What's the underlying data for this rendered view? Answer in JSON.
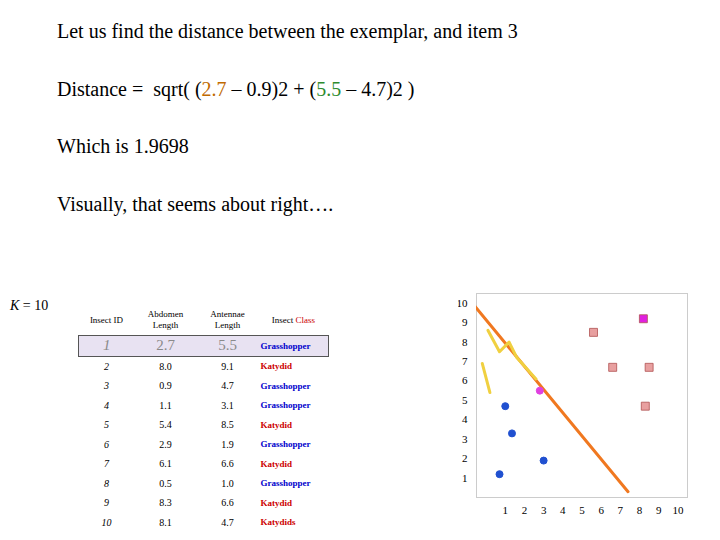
{
  "slide": {
    "title": "Let us find the distance between the exemplar, and item 3",
    "formula": [
      {
        "text": "Distance =  sqrt( ("
      },
      {
        "text": "2.7",
        "color": "#c06a00"
      },
      {
        "text": " – 0.9)2 + ("
      },
      {
        "text": "5.5",
        "color": "#2e8b2e"
      },
      {
        "text": " – 4.7)2 )"
      }
    ],
    "result": "Which is 1.9698",
    "comment": "Visually, that seems about right…."
  },
  "k_label": "K = 10",
  "table": {
    "header": [
      [
        {
          "text": "Insect ID"
        }
      ],
      [
        {
          "text": "Abdomen Length"
        }
      ],
      [
        {
          "text": "Antennae Length"
        }
      ],
      [
        {
          "text": "Insect "
        },
        {
          "text": "Class",
          "color": "#cc0000"
        }
      ]
    ],
    "rows": [
      [
        "1",
        "2.7",
        "5.5",
        "Grasshopper"
      ],
      [
        "2",
        "8.0",
        "9.1",
        "Katydid"
      ],
      [
        "3",
        "0.9",
        "4.7",
        "Grasshopper"
      ],
      [
        "4",
        "1.1",
        "3.1",
        "Grasshopper"
      ],
      [
        "5",
        "5.4",
        "8.5",
        "Katydid"
      ],
      [
        "6",
        "2.9",
        "1.9",
        "Grasshopper"
      ],
      [
        "7",
        "6.1",
        "6.6",
        "Katydid"
      ],
      [
        "8",
        "0.5",
        "1.0",
        "Grasshopper"
      ],
      [
        "9",
        "8.3",
        "6.6",
        "Katydid"
      ],
      [
        "10",
        "8.1",
        "4.7",
        "Katydids"
      ]
    ],
    "class_colors": {
      "Grasshopper": "#0000cc",
      "Katydid": "#cc0000",
      "Katydids": "#cc0000"
    },
    "highlight_row": 0
  },
  "chart_data": {
    "type": "scatter",
    "xlim": [
      -0.5,
      10.5
    ],
    "ylim": [
      0,
      10.5
    ],
    "xticks": [
      1,
      2,
      3,
      4,
      5,
      6,
      7,
      8,
      9,
      10
    ],
    "yticks": [
      1,
      2,
      3,
      4,
      5,
      6,
      7,
      8,
      9,
      10
    ],
    "grid": false,
    "series": [
      {
        "color": "#2050d0",
        "marker": "circle",
        "x": [
          1.0,
          1.35,
          0.7,
          3.0
        ],
        "y": [
          4.7,
          3.3,
          1.2,
          1.9
        ]
      },
      {
        "color": "#e040e0",
        "marker": "circle",
        "x": [
          2.8
        ],
        "y": [
          5.5
        ]
      },
      {
        "color": "#e8a0a0",
        "marker": "square",
        "x": [
          5.6,
          6.6,
          8.5,
          8.3
        ],
        "y": [
          8.5,
          6.7,
          6.7,
          4.7
        ]
      },
      {
        "color": "#e020e0",
        "marker": "square",
        "x": [
          8.2
        ],
        "y": [
          9.2
        ]
      }
    ],
    "lines": [
      {
        "color": "#f07820",
        "x": [
          -0.8,
          7.4
        ],
        "y": [
          10.1,
          0.3
        ]
      },
      {
        "color": "#f0d040",
        "x": [
          0.1,
          0.7,
          1.2,
          1.6,
          2.6
        ],
        "y": [
          8.6,
          7.5,
          8.0,
          7.2,
          6.1
        ]
      },
      {
        "color": "#f0d040",
        "x": [
          -0.2,
          0.2
        ],
        "y": [
          6.9,
          5.4
        ]
      }
    ]
  }
}
